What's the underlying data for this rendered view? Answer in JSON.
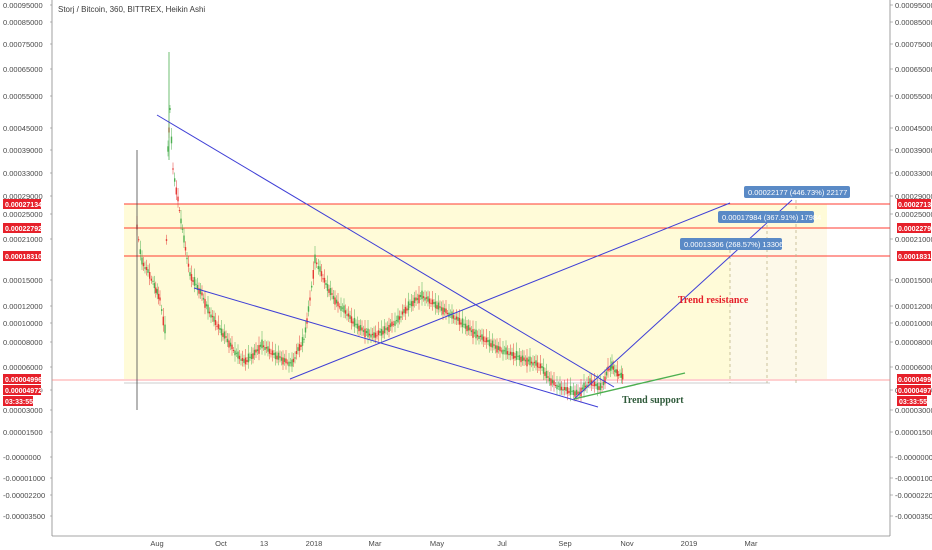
{
  "title": "Storj / Bitcoin, 360, BITTREX, Heikin Ashi",
  "colors": {
    "up": "#4caf50",
    "down": "#e53935",
    "resistance_line": "#ff3b30",
    "trendline": "#3f3fd6",
    "support_line": "#4caf50",
    "highlight_zone": "#fffbd6",
    "callout_bg": "#5a8ac6",
    "tag_red": "#e6202a"
  },
  "chart_data": {
    "type": "candlestick",
    "ylim": [
      -3.6e-05,
      9.2e-05
    ],
    "y_ticks_left": [
      "0.00095000",
      "0.00085000",
      "0.00075000",
      "0.00065000",
      "0.00055000",
      "0.00045000",
      "0.00039000",
      "0.00033000",
      "0.00029000",
      "0.00025000",
      "0.00021000",
      "0.00015000",
      "0.00012000",
      "0.00010000",
      "0.00008000",
      "0.00006000",
      "0.00004000",
      "0.00003000",
      "0.00001500",
      "-0.0000000",
      "-0.00001000",
      "-0.00002200",
      "-0.00003500"
    ],
    "y_ticks_right": [
      "0.00095000",
      "0.00085000",
      "0.00075000",
      "0.00065000",
      "0.00055000",
      "0.00045000",
      "0.00039000",
      "0.00033000",
      "0.00029000",
      "0.00025000",
      "0.00021000",
      "0.00015000",
      "0.00012000",
      "0.00010000",
      "0.00008000",
      "0.00006000",
      "0.00004000",
      "0.00003000",
      "0.00001500",
      "-0.0000000",
      "-0.00001000",
      "-0.00002200",
      "-0.00003500"
    ],
    "x_labels": [
      "Aug",
      "Oct",
      "13",
      "2018",
      "Mar",
      "May",
      "Jul",
      "Sep",
      "Nov",
      "2019",
      "Mar"
    ],
    "price_levels": [
      {
        "label": "0.00027134",
        "value": 0.00027134
      },
      {
        "label": "0.00022792",
        "value": 0.00022792
      },
      {
        "label": "0.00018310",
        "value": 0.0001831
      },
      {
        "label": "0.00004996",
        "value": 4.996e-05
      },
      {
        "label": "0.00004972",
        "value": 4.972e-05
      }
    ],
    "countdown": "03:33:55",
    "targets": [
      {
        "label": "0.00022177 (446.73%) 22177",
        "value": 0.00022177
      },
      {
        "label": "0.00017984 (367.91%) 17984",
        "value": 0.00017984
      },
      {
        "label": "0.00013306 (268.57%) 13306",
        "value": 0.00013306
      }
    ],
    "annotations": [
      "Trend resistance",
      "Trend support"
    ],
    "series": [
      {
        "x": "Aug",
        "values": [
          0.00016,
          0.00042,
          0.0003
        ]
      },
      {
        "x": "Oct",
        "values": [
          0.00012,
          6.5e-05,
          8e-05
        ]
      },
      {
        "x": "13",
        "values": [
          6e-05,
          4.5e-05,
          7e-05
        ]
      },
      {
        "x": "2018",
        "values": [
          0.00013,
          0.00016,
          0.0001
        ]
      },
      {
        "x": "Mar",
        "values": [
          8e-05,
          0.00011,
          9e-05
        ]
      },
      {
        "x": "May",
        "values": [
          0.00011,
          0.0001,
          8e-05
        ]
      },
      {
        "x": "Jul",
        "values": [
          7e-05,
          6e-05,
          5e-05
        ]
      },
      {
        "x": "Sep",
        "values": [
          4e-05,
          4.5e-05,
          5e-05
        ]
      }
    ]
  }
}
